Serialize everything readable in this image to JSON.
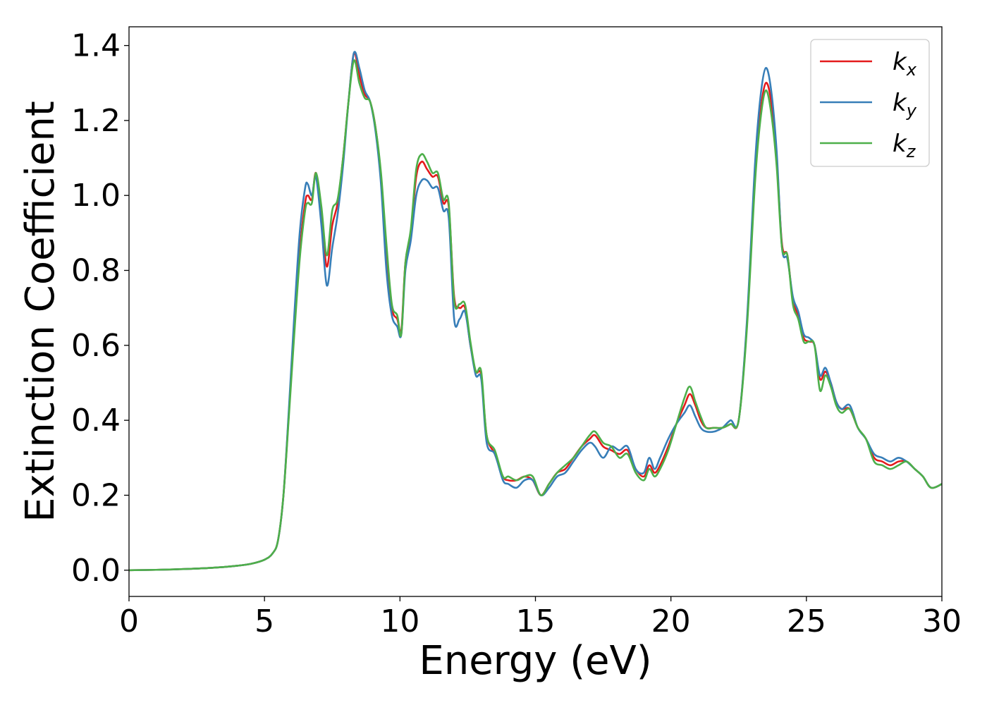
{
  "chart_data": {
    "type": "line",
    "xlabel": "Energy (eV)",
    "ylabel": "Extinction Coefficient",
    "xlim": [
      0,
      30
    ],
    "ylim": [
      -0.07,
      1.45
    ],
    "xticks": [
      0,
      5,
      10,
      15,
      20,
      25,
      30
    ],
    "xtick_labels": [
      "0",
      "5",
      "10",
      "15",
      "20",
      "25",
      "30"
    ],
    "yticks": [
      0.0,
      0.2,
      0.4,
      0.6,
      0.8,
      1.0,
      1.2,
      1.4
    ],
    "ytick_labels": [
      "0.0",
      "0.2",
      "0.4",
      "0.6",
      "0.8",
      "1.0",
      "1.2",
      "1.4"
    ],
    "grid": false,
    "legend_position": "top-right",
    "series": [
      {
        "name": "k_x",
        "legend_base": "k",
        "legend_sub": "x",
        "color": "#e41a1c",
        "x": [
          0,
          1,
          2,
          3,
          4,
          4.5,
          5,
          5.3,
          5.5,
          5.7,
          5.9,
          6.1,
          6.3,
          6.5,
          6.6,
          6.75,
          6.9,
          7.1,
          7.3,
          7.5,
          7.7,
          7.9,
          8.1,
          8.3,
          8.5,
          8.7,
          8.9,
          9.1,
          9.3,
          9.5,
          9.7,
          9.9,
          10.05,
          10.2,
          10.4,
          10.6,
          10.8,
          11.0,
          11.2,
          11.4,
          11.6,
          11.8,
          12.0,
          12.2,
          12.4,
          12.6,
          12.8,
          13.0,
          13.2,
          13.5,
          13.8,
          14.0,
          14.3,
          14.6,
          14.9,
          15.2,
          15.5,
          15.8,
          16.1,
          16.4,
          16.7,
          17.0,
          17.2,
          17.5,
          17.8,
          18.1,
          18.4,
          18.7,
          19.0,
          19.2,
          19.4,
          19.6,
          19.9,
          20.2,
          20.5,
          20.7,
          20.9,
          21.1,
          21.3,
          21.6,
          21.9,
          22.2,
          22.5,
          22.8,
          23.1,
          23.3,
          23.5,
          23.7,
          23.9,
          24.1,
          24.3,
          24.5,
          24.7,
          24.9,
          25.1,
          25.3,
          25.5,
          25.7,
          25.9,
          26.1,
          26.3,
          26.6,
          26.9,
          27.2,
          27.5,
          27.8,
          28.1,
          28.4,
          28.7,
          29.0,
          29.3,
          29.6,
          30
        ],
        "y": [
          0.0,
          0.001,
          0.003,
          0.006,
          0.012,
          0.017,
          0.028,
          0.045,
          0.08,
          0.2,
          0.42,
          0.65,
          0.85,
          0.98,
          1.0,
          0.99,
          1.06,
          0.95,
          0.81,
          0.92,
          0.98,
          1.1,
          1.25,
          1.38,
          1.32,
          1.27,
          1.25,
          1.18,
          1.05,
          0.85,
          0.7,
          0.67,
          0.64,
          0.82,
          0.9,
          1.05,
          1.09,
          1.07,
          1.05,
          1.05,
          0.98,
          0.97,
          0.73,
          0.7,
          0.7,
          0.6,
          0.53,
          0.52,
          0.36,
          0.31,
          0.25,
          0.24,
          0.24,
          0.25,
          0.24,
          0.2,
          0.23,
          0.26,
          0.27,
          0.3,
          0.33,
          0.35,
          0.36,
          0.33,
          0.32,
          0.31,
          0.32,
          0.27,
          0.25,
          0.28,
          0.26,
          0.28,
          0.33,
          0.39,
          0.44,
          0.47,
          0.44,
          0.4,
          0.38,
          0.38,
          0.38,
          0.39,
          0.4,
          0.65,
          1.05,
          1.22,
          1.3,
          1.25,
          1.1,
          0.87,
          0.84,
          0.72,
          0.68,
          0.62,
          0.61,
          0.6,
          0.51,
          0.53,
          0.5,
          0.45,
          0.43,
          0.43,
          0.38,
          0.35,
          0.3,
          0.29,
          0.28,
          0.29,
          0.29,
          0.27,
          0.25,
          0.22,
          0.23
        ]
      },
      {
        "name": "k_y",
        "legend_base": "k",
        "legend_sub": "y",
        "color": "#377eb8",
        "x": [
          0,
          1,
          2,
          3,
          4,
          4.5,
          5,
          5.3,
          5.5,
          5.7,
          5.9,
          6.1,
          6.3,
          6.5,
          6.6,
          6.75,
          6.9,
          7.1,
          7.3,
          7.5,
          7.7,
          7.9,
          8.1,
          8.3,
          8.5,
          8.7,
          8.9,
          9.1,
          9.3,
          9.5,
          9.7,
          9.9,
          10.05,
          10.2,
          10.4,
          10.6,
          10.8,
          11.0,
          11.2,
          11.4,
          11.6,
          11.8,
          12.0,
          12.2,
          12.4,
          12.6,
          12.8,
          13.0,
          13.2,
          13.5,
          13.8,
          14.0,
          14.3,
          14.6,
          14.9,
          15.2,
          15.5,
          15.8,
          16.1,
          16.4,
          16.7,
          17.0,
          17.2,
          17.5,
          17.8,
          18.1,
          18.4,
          18.7,
          19.0,
          19.2,
          19.4,
          19.6,
          19.9,
          20.2,
          20.5,
          20.7,
          20.9,
          21.1,
          21.3,
          21.6,
          21.9,
          22.2,
          22.5,
          22.8,
          23.1,
          23.3,
          23.5,
          23.7,
          23.9,
          24.1,
          24.3,
          24.5,
          24.7,
          24.9,
          25.1,
          25.3,
          25.5,
          25.7,
          25.9,
          26.1,
          26.3,
          26.6,
          26.9,
          27.2,
          27.5,
          27.8,
          28.1,
          28.4,
          28.7,
          29.0,
          29.3,
          29.6,
          30
        ],
        "y": [
          0.0,
          0.001,
          0.003,
          0.006,
          0.012,
          0.017,
          0.028,
          0.045,
          0.08,
          0.2,
          0.43,
          0.68,
          0.9,
          1.02,
          1.03,
          1.0,
          1.05,
          0.92,
          0.76,
          0.86,
          0.95,
          1.08,
          1.25,
          1.38,
          1.34,
          1.28,
          1.25,
          1.17,
          1.03,
          0.8,
          0.68,
          0.65,
          0.63,
          0.8,
          0.88,
          1.0,
          1.04,
          1.04,
          1.02,
          1.02,
          0.96,
          0.94,
          0.67,
          0.67,
          0.69,
          0.6,
          0.52,
          0.51,
          0.34,
          0.31,
          0.24,
          0.23,
          0.22,
          0.24,
          0.24,
          0.2,
          0.22,
          0.25,
          0.26,
          0.29,
          0.32,
          0.34,
          0.33,
          0.3,
          0.33,
          0.32,
          0.33,
          0.27,
          0.26,
          0.3,
          0.27,
          0.3,
          0.35,
          0.39,
          0.42,
          0.44,
          0.41,
          0.38,
          0.37,
          0.37,
          0.38,
          0.4,
          0.4,
          0.66,
          1.08,
          1.26,
          1.34,
          1.28,
          1.12,
          0.86,
          0.83,
          0.73,
          0.69,
          0.63,
          0.62,
          0.6,
          0.52,
          0.54,
          0.5,
          0.45,
          0.43,
          0.44,
          0.38,
          0.35,
          0.31,
          0.3,
          0.29,
          0.3,
          0.29,
          0.27,
          0.25,
          0.22,
          0.23
        ]
      },
      {
        "name": "k_z",
        "legend_base": "k",
        "legend_sub": "z",
        "color": "#4daf4a",
        "x": [
          0,
          1,
          2,
          3,
          4,
          4.5,
          5,
          5.3,
          5.5,
          5.7,
          5.9,
          6.1,
          6.3,
          6.5,
          6.6,
          6.75,
          6.9,
          7.1,
          7.3,
          7.5,
          7.7,
          7.9,
          8.1,
          8.3,
          8.5,
          8.7,
          8.9,
          9.1,
          9.3,
          9.5,
          9.7,
          9.9,
          10.05,
          10.2,
          10.4,
          10.6,
          10.8,
          11.0,
          11.2,
          11.4,
          11.6,
          11.8,
          12.0,
          12.2,
          12.4,
          12.6,
          12.8,
          13.0,
          13.2,
          13.5,
          13.8,
          14.0,
          14.3,
          14.6,
          14.9,
          15.2,
          15.5,
          15.8,
          16.1,
          16.4,
          16.7,
          17.0,
          17.2,
          17.5,
          17.8,
          18.1,
          18.4,
          18.7,
          19.0,
          19.2,
          19.4,
          19.6,
          19.9,
          20.2,
          20.5,
          20.7,
          20.9,
          21.1,
          21.3,
          21.6,
          21.9,
          22.2,
          22.5,
          22.8,
          23.1,
          23.3,
          23.5,
          23.7,
          23.9,
          24.1,
          24.3,
          24.5,
          24.7,
          24.9,
          25.1,
          25.3,
          25.5,
          25.7,
          25.9,
          26.1,
          26.3,
          26.6,
          26.9,
          27.2,
          27.5,
          27.8,
          28.1,
          28.4,
          28.7,
          29.0,
          29.3,
          29.6,
          30
        ],
        "y": [
          0.0,
          0.001,
          0.003,
          0.006,
          0.012,
          0.017,
          0.028,
          0.045,
          0.08,
          0.2,
          0.41,
          0.63,
          0.83,
          0.96,
          0.98,
          0.98,
          1.06,
          0.97,
          0.84,
          0.96,
          0.99,
          1.1,
          1.25,
          1.36,
          1.3,
          1.26,
          1.25,
          1.18,
          1.06,
          0.87,
          0.71,
          0.68,
          0.63,
          0.82,
          0.91,
          1.07,
          1.11,
          1.09,
          1.06,
          1.06,
          0.99,
          0.98,
          0.72,
          0.71,
          0.71,
          0.61,
          0.53,
          0.53,
          0.36,
          0.32,
          0.25,
          0.25,
          0.24,
          0.25,
          0.25,
          0.2,
          0.23,
          0.26,
          0.28,
          0.3,
          0.33,
          0.36,
          0.37,
          0.34,
          0.33,
          0.3,
          0.31,
          0.26,
          0.24,
          0.27,
          0.25,
          0.27,
          0.32,
          0.39,
          0.46,
          0.49,
          0.45,
          0.41,
          0.38,
          0.38,
          0.38,
          0.39,
          0.4,
          0.64,
          1.03,
          1.2,
          1.28,
          1.22,
          1.08,
          0.86,
          0.84,
          0.71,
          0.67,
          0.61,
          0.61,
          0.6,
          0.48,
          0.52,
          0.49,
          0.44,
          0.42,
          0.43,
          0.38,
          0.35,
          0.29,
          0.28,
          0.27,
          0.28,
          0.29,
          0.27,
          0.25,
          0.22,
          0.23
        ]
      }
    ]
  }
}
